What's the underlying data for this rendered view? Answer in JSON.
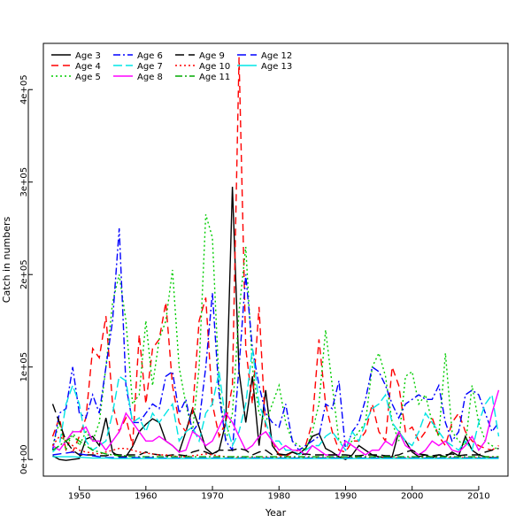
{
  "chart_data": {
    "type": "line",
    "title": "",
    "xlabel": "Year",
    "ylabel": "Catch in numbers",
    "xlim": [
      1944.6,
      2014.4
    ],
    "ylim": [
      -18000,
      450000
    ],
    "x_ticks": [
      1950,
      1960,
      1970,
      1980,
      1990,
      2000,
      2010
    ],
    "x_tick_labels": [
      "1950",
      "1960",
      "1970",
      "1980",
      "1990",
      "2000",
      "2010"
    ],
    "y_ticks": [
      0,
      100000,
      200000,
      300000,
      400000
    ],
    "y_tick_labels": [
      "0e+00",
      "1e+05",
      "2e+05",
      "3e+05",
      "4e+05"
    ],
    "grid": false,
    "legend_position": "top-left",
    "years_start": 1946,
    "years_end": 2013,
    "series": [
      {
        "name": "Age 3",
        "color": "#000000",
        "dash": "solid",
        "values": [
          4000,
          0,
          -1000,
          0,
          1000,
          22000,
          25000,
          15000,
          45000,
          8000,
          3000,
          3000,
          14000,
          30000,
          38000,
          44000,
          40000,
          20000,
          15000,
          8000,
          30000,
          55000,
          35000,
          12000,
          6000,
          10000,
          40000,
          295000,
          95000,
          40000,
          90000,
          15000,
          75000,
          15000,
          5000,
          5000,
          8000,
          6000,
          12000,
          25000,
          28000,
          12000,
          8000,
          3000,
          0,
          5000,
          15000,
          10000,
          5000,
          3000,
          2000,
          3000,
          30000,
          20000,
          8000,
          3000,
          5000,
          2000,
          5000,
          3000,
          8000,
          4000,
          25000,
          10000,
          5000,
          3000,
          2000,
          2000
        ]
      },
      {
        "name": "Age 4",
        "color": "#ff0000",
        "dash": "8,5",
        "values": [
          25000,
          45000,
          10000,
          8000,
          25000,
          45000,
          120000,
          110000,
          155000,
          60000,
          30000,
          45000,
          15000,
          135000,
          60000,
          120000,
          130000,
          170000,
          80000,
          40000,
          30000,
          50000,
          150000,
          175000,
          60000,
          25000,
          40000,
          80000,
          435000,
          120000,
          60000,
          165000,
          30000,
          20000,
          5000,
          3000,
          8000,
          10000,
          15000,
          40000,
          130000,
          60000,
          30000,
          10000,
          8000,
          20000,
          20000,
          30000,
          60000,
          30000,
          20000,
          100000,
          80000,
          30000,
          35000,
          20000,
          30000,
          45000,
          25000,
          15000,
          40000,
          50000,
          30000,
          20000,
          15000,
          12000,
          10000,
          15000
        ]
      },
      {
        "name": "Age 5",
        "color": "#00cc00",
        "dash": "2,3",
        "values": [
          15000,
          40000,
          10000,
          30000,
          15000,
          30000,
          20000,
          40000,
          100000,
          170000,
          200000,
          150000,
          60000,
          70000,
          150000,
          80000,
          130000,
          150000,
          205000,
          100000,
          60000,
          30000,
          100000,
          265000,
          240000,
          80000,
          20000,
          50000,
          160000,
          230000,
          100000,
          50000,
          40000,
          60000,
          80000,
          40000,
          20000,
          15000,
          10000,
          30000,
          60000,
          140000,
          80000,
          20000,
          15000,
          20000,
          30000,
          40000,
          100000,
          115000,
          90000,
          40000,
          20000,
          90000,
          95000,
          60000,
          70000,
          40000,
          25000,
          115000,
          30000,
          20000,
          15000,
          80000,
          40000,
          20000,
          15000,
          10000
        ]
      },
      {
        "name": "Age 6",
        "color": "#0000ff",
        "dash": "8,3,2,3",
        "values": [
          10000,
          50000,
          55000,
          100000,
          50000,
          45000,
          70000,
          50000,
          100000,
          150000,
          250000,
          80000,
          40000,
          40000,
          50000,
          60000,
          55000,
          90000,
          95000,
          50000,
          65000,
          30000,
          40000,
          100000,
          180000,
          70000,
          20000,
          10000,
          100000,
          200000,
          120000,
          80000,
          50000,
          40000,
          35000,
          60000,
          20000,
          10000,
          15000,
          20000,
          25000,
          60000,
          55000,
          85000,
          10000,
          30000,
          40000,
          65000,
          100000,
          95000,
          80000,
          60000,
          45000,
          60000,
          65000,
          70000,
          65000,
          65000,
          80000,
          40000,
          20000,
          30000,
          70000,
          75000,
          70000,
          50000,
          30000,
          40000
        ]
      },
      {
        "name": "Age 7",
        "color": "#00e5e5",
        "dash": "10,4",
        "values": [
          8000,
          15000,
          60000,
          80000,
          60000,
          20000,
          10000,
          15000,
          20000,
          50000,
          90000,
          85000,
          40000,
          45000,
          30000,
          50000,
          40000,
          50000,
          60000,
          20000,
          30000,
          35000,
          20000,
          50000,
          60000,
          95000,
          40000,
          15000,
          30000,
          60000,
          120000,
          60000,
          40000,
          20000,
          20000,
          10000,
          10000,
          5000,
          10000,
          15000,
          15000,
          25000,
          30000,
          20000,
          10000,
          30000,
          20000,
          40000,
          55000,
          60000,
          70000,
          40000,
          30000,
          20000,
          15000,
          30000,
          50000,
          40000,
          30000,
          20000,
          15000,
          10000,
          20000,
          10000,
          40000,
          60000,
          70000,
          25000
        ]
      },
      {
        "name": "Age 8",
        "color": "#ff00ff",
        "dash": "solid",
        "values": [
          15000,
          10000,
          20000,
          30000,
          30000,
          35000,
          20000,
          20000,
          10000,
          20000,
          30000,
          50000,
          40000,
          30000,
          20000,
          20000,
          25000,
          20000,
          15000,
          8000,
          10000,
          30000,
          25000,
          15000,
          20000,
          35000,
          50000,
          40000,
          25000,
          10000,
          15000,
          25000,
          30000,
          20000,
          10000,
          15000,
          10000,
          10000,
          5000,
          15000,
          10000,
          5000,
          5000,
          5000,
          20000,
          15000,
          10000,
          5000,
          10000,
          10000,
          20000,
          15000,
          30000,
          15000,
          10000,
          5000,
          10000,
          20000,
          15000,
          20000,
          10000,
          8000,
          15000,
          25000,
          10000,
          20000,
          50000,
          75000
        ]
      },
      {
        "name": "Age 9",
        "color": "#000000",
        "dash": "10,5",
        "values": [
          60000,
          40000,
          20000,
          10000,
          5000,
          5000,
          5000,
          4000,
          4000,
          6000,
          5000,
          5000,
          5000,
          5000,
          8000,
          6000,
          5000,
          4000,
          5000,
          5000,
          4000,
          8000,
          10000,
          8000,
          5000,
          10000,
          10000,
          10000,
          12000,
          10000,
          5000,
          8000,
          10000,
          5000,
          6000,
          5000,
          8000,
          5000,
          6000,
          5000,
          5000,
          5000,
          5000,
          5000,
          5000,
          4000,
          4000,
          5000,
          5000,
          5000,
          4000,
          4000,
          5000,
          8000,
          10000,
          6000,
          5000,
          4000,
          5000,
          5000,
          6000,
          4000,
          5000,
          5000,
          5000,
          8000,
          10000,
          12000
        ]
      },
      {
        "name": "Age 10",
        "color": "#ff0000",
        "dash": "2,3",
        "values": [
          15000,
          25000,
          20000,
          15000,
          10000,
          8000,
          7000,
          6000,
          8000,
          10000,
          12000,
          12000,
          10000,
          8000,
          7000,
          6000,
          5000,
          5000,
          4000,
          3000,
          3000,
          4000,
          5000,
          6000,
          5000,
          4000,
          3000,
          2000,
          2000,
          2000,
          2000,
          2000,
          2000,
          2000,
          2000,
          2000,
          2000,
          2000,
          2000,
          2000,
          2000,
          2000,
          2000,
          2000,
          2000,
          2000,
          2000,
          2000,
          2000,
          2000,
          2000,
          2000,
          2000,
          2000,
          2000,
          2000,
          2000,
          2000,
          2000,
          2000,
          2000,
          2000,
          2000,
          2000,
          2000,
          2000,
          2000,
          2000
        ]
      },
      {
        "name": "Age 11",
        "color": "#00aa00",
        "dash": "8,3,2,3",
        "values": [
          10000,
          15000,
          20000,
          25000,
          20000,
          15000,
          10000,
          8000,
          6000,
          5000,
          4000,
          4000,
          3000,
          3000,
          3000,
          3000,
          3000,
          3000,
          3000,
          3000,
          3000,
          3000,
          3000,
          3000,
          3000,
          3000,
          3000,
          3000,
          3000,
          3000,
          3000,
          3000,
          3000,
          3000,
          3000,
          3000,
          3000,
          3000,
          3000,
          3000,
          3000,
          3000,
          3000,
          3000,
          3000,
          3000,
          3000,
          3000,
          3000,
          3000,
          3000,
          3000,
          3000,
          3000,
          3000,
          3000,
          3000,
          3000,
          3000,
          3000,
          3000,
          3000,
          3000,
          3000,
          3000,
          3000,
          3000,
          3000
        ]
      },
      {
        "name": "Age 12",
        "color": "#0000ff",
        "dash": "10,5",
        "values": [
          5000,
          6000,
          7000,
          8000,
          6000,
          5000,
          4000,
          3000,
          2000,
          2000,
          2000,
          2000,
          2000,
          2000,
          2000,
          2000,
          1500,
          1500,
          1500,
          1500,
          1500,
          1500,
          1500,
          1500,
          1500,
          1500,
          1500,
          1500,
          1500,
          1500,
          1500,
          1500,
          1500,
          1500,
          1500,
          1500,
          1500,
          1500,
          1500,
          1500,
          1500,
          1500,
          1500,
          1500,
          1500,
          1500,
          1500,
          1500,
          1500,
          1500,
          1500,
          1500,
          1500,
          1500,
          1500,
          1500,
          1500,
          1500,
          1500,
          1500,
          1500,
          1500,
          1500,
          1500,
          1500,
          1500,
          1500,
          1500
        ]
      },
      {
        "name": "Age 13",
        "color": "#00e5e5",
        "dash": "solid",
        "values": [
          3000,
          3000,
          3000,
          3000,
          2500,
          2000,
          1500,
          1500,
          1500,
          1000,
          1000,
          1000,
          1000,
          1000,
          1000,
          1000,
          1000,
          1000,
          1000,
          1000,
          1000,
          1000,
          1000,
          1000,
          1000,
          1000,
          1000,
          1000,
          1000,
          1000,
          1000,
          1000,
          1000,
          1000,
          1000,
          1000,
          1000,
          1000,
          1000,
          1000,
          1000,
          1000,
          1000,
          1000,
          1000,
          1000,
          1000,
          1000,
          1000,
          1000,
          1000,
          1000,
          1000,
          1000,
          1000,
          1000,
          1000,
          1000,
          1000,
          1000,
          1000,
          1000,
          1000,
          1000,
          1000,
          1000,
          1000,
          1000
        ]
      }
    ]
  }
}
